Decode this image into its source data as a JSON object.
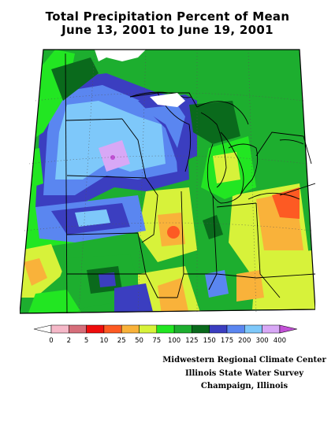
{
  "title": {
    "line1": "Total Precipitation Percent of Mean",
    "line2": "June 13, 2001 to June 19, 2001"
  },
  "legend": {
    "colors": [
      "#ffffff",
      "#f5b8c8",
      "#d66e7a",
      "#ef0c0c",
      "#fd5a23",
      "#f9b23a",
      "#d7f23a",
      "#22e622",
      "#1dae2f",
      "#0a6a1c",
      "#3b3ec0",
      "#5a86f0",
      "#7ec8fa",
      "#d8a8f6",
      "#c250d6"
    ],
    "labels": [
      "0",
      "2",
      "5",
      "10",
      "25",
      "50",
      "75",
      "100",
      "125",
      "150",
      "175",
      "200",
      "300",
      "400"
    ]
  },
  "credits": {
    "line1": "Midwestern Regional Climate Center",
    "line2": "Illinois State Water Survey",
    "line3": "Champaign, Illinois"
  },
  "map_colors": {
    "dark_green": "#0a6a1c",
    "green": "#1dae2f",
    "bright_green": "#22e622",
    "yellow_green": "#d7f23a",
    "orange": "#f9b23a",
    "red_orange": "#fd5a23",
    "dark_blue": "#3b3ec0",
    "blue": "#5a86f0",
    "light_blue": "#7ec8fa",
    "lavender": "#d8a8f6"
  }
}
